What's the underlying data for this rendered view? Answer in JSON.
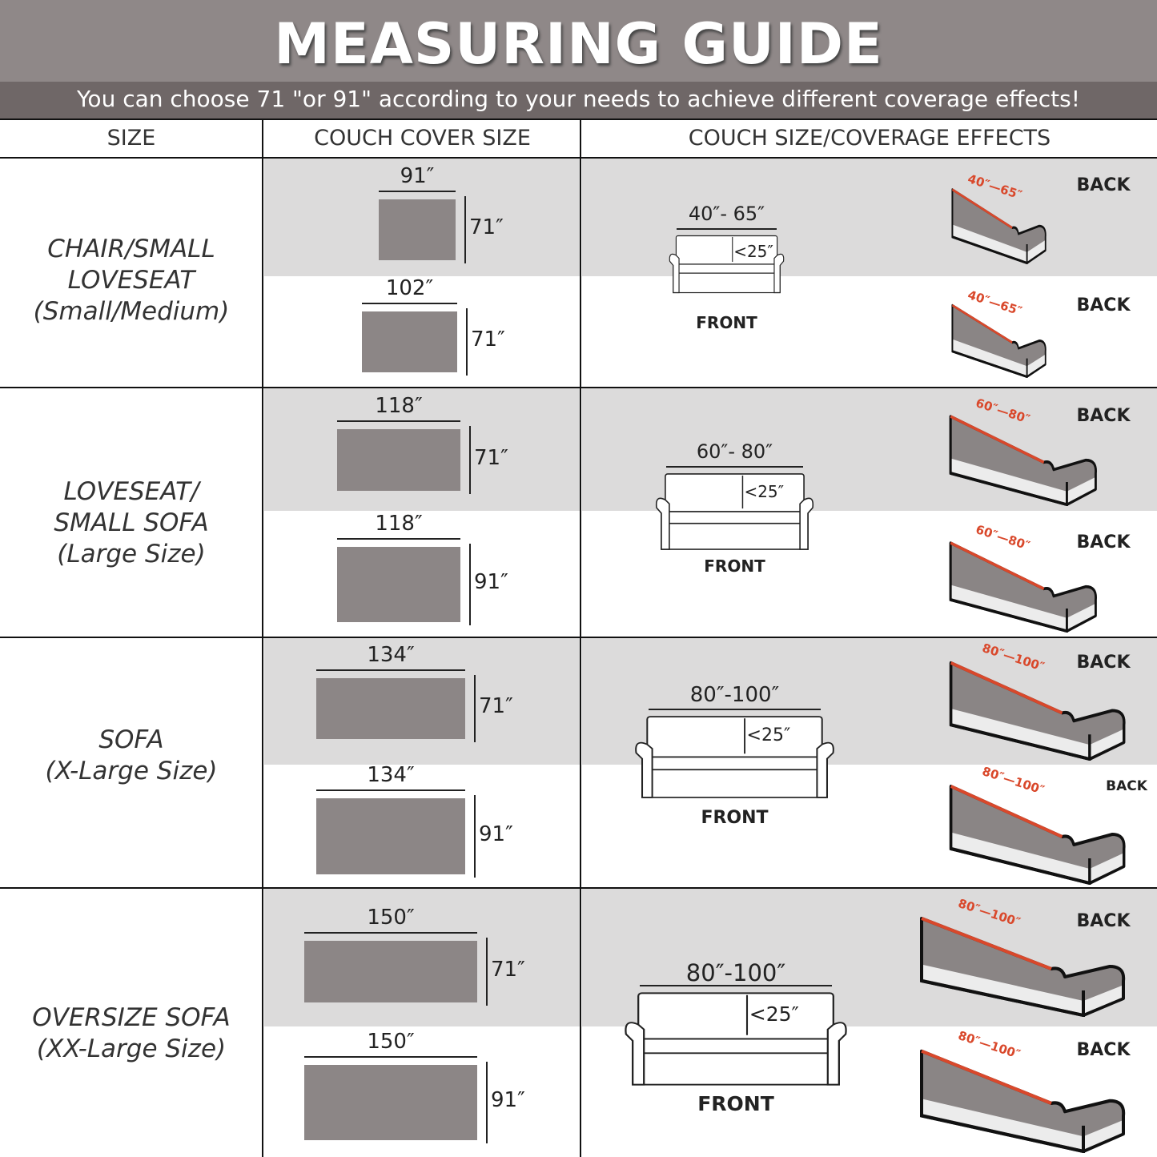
{
  "header": {
    "title": "MEASURING GUIDE",
    "subtitle": "You can choose 71 \"or 91\" according to your needs to achieve different coverage effects!"
  },
  "columns": [
    "SIZE",
    "COUCH COVER SIZE",
    "COUCH SIZE/COVERAGE EFFECTS"
  ],
  "colors": {
    "header_bg": "#8f8888",
    "subtitle_bg": "#6f6767",
    "band_gray": "#dcdbdb",
    "cover_gray": "#8c8686",
    "measure_red": "#d9482b"
  },
  "rows": [
    {
      "size_lines": [
        "CHAIR/SMALL",
        "LOVESEAT",
        "(Small/Medium)"
      ],
      "covers": [
        {
          "width": "91″",
          "height": "71″"
        },
        {
          "width": "102″",
          "height": "71″"
        }
      ],
      "front": {
        "range": "40″- 65″",
        "height": "<25″",
        "label": "FRONT"
      },
      "backs": [
        {
          "range_from": "40″",
          "range_to": "65″",
          "label": "BACK"
        },
        {
          "range_from": "40″",
          "range_to": "65″",
          "label": "BACK"
        }
      ]
    },
    {
      "size_lines": [
        "LOVESEAT/",
        "SMALL SOFA",
        "(Large Size)"
      ],
      "covers": [
        {
          "width": "118″",
          "height": "71″"
        },
        {
          "width": "118″",
          "height": "91″"
        }
      ],
      "front": {
        "range": "60″- 80″",
        "height": "<25″",
        "label": "FRONT"
      },
      "backs": [
        {
          "range_from": "60″",
          "range_to": "80″",
          "label": "BACK"
        },
        {
          "range_from": "60″",
          "range_to": "80″",
          "label": "BACK"
        }
      ]
    },
    {
      "size_lines": [
        "SOFA",
        "(X-Large Size)"
      ],
      "covers": [
        {
          "width": "134″",
          "height": "71″"
        },
        {
          "width": "134″",
          "height": "91″"
        }
      ],
      "front": {
        "range": "80″-100″",
        "height": "<25″",
        "label": "FRONT"
      },
      "backs": [
        {
          "range_from": "80″",
          "range_to": "100″",
          "label": "BACK"
        },
        {
          "range_from": "80″",
          "range_to": "100″",
          "label": "BACK"
        }
      ]
    },
    {
      "size_lines": [
        "OVERSIZE SOFA",
        "(XX-Large  Size)"
      ],
      "covers": [
        {
          "width": "150″",
          "height": "71″"
        },
        {
          "width": "150″",
          "height": "91″"
        }
      ],
      "front": {
        "range": "80″-100″",
        "height": "<25″",
        "label": "FRONT"
      },
      "backs": [
        {
          "range_from": "80″",
          "range_to": "100″",
          "label": "BACK"
        },
        {
          "range_from": "80″",
          "range_to": "100″",
          "label": "BACK"
        }
      ]
    }
  ]
}
